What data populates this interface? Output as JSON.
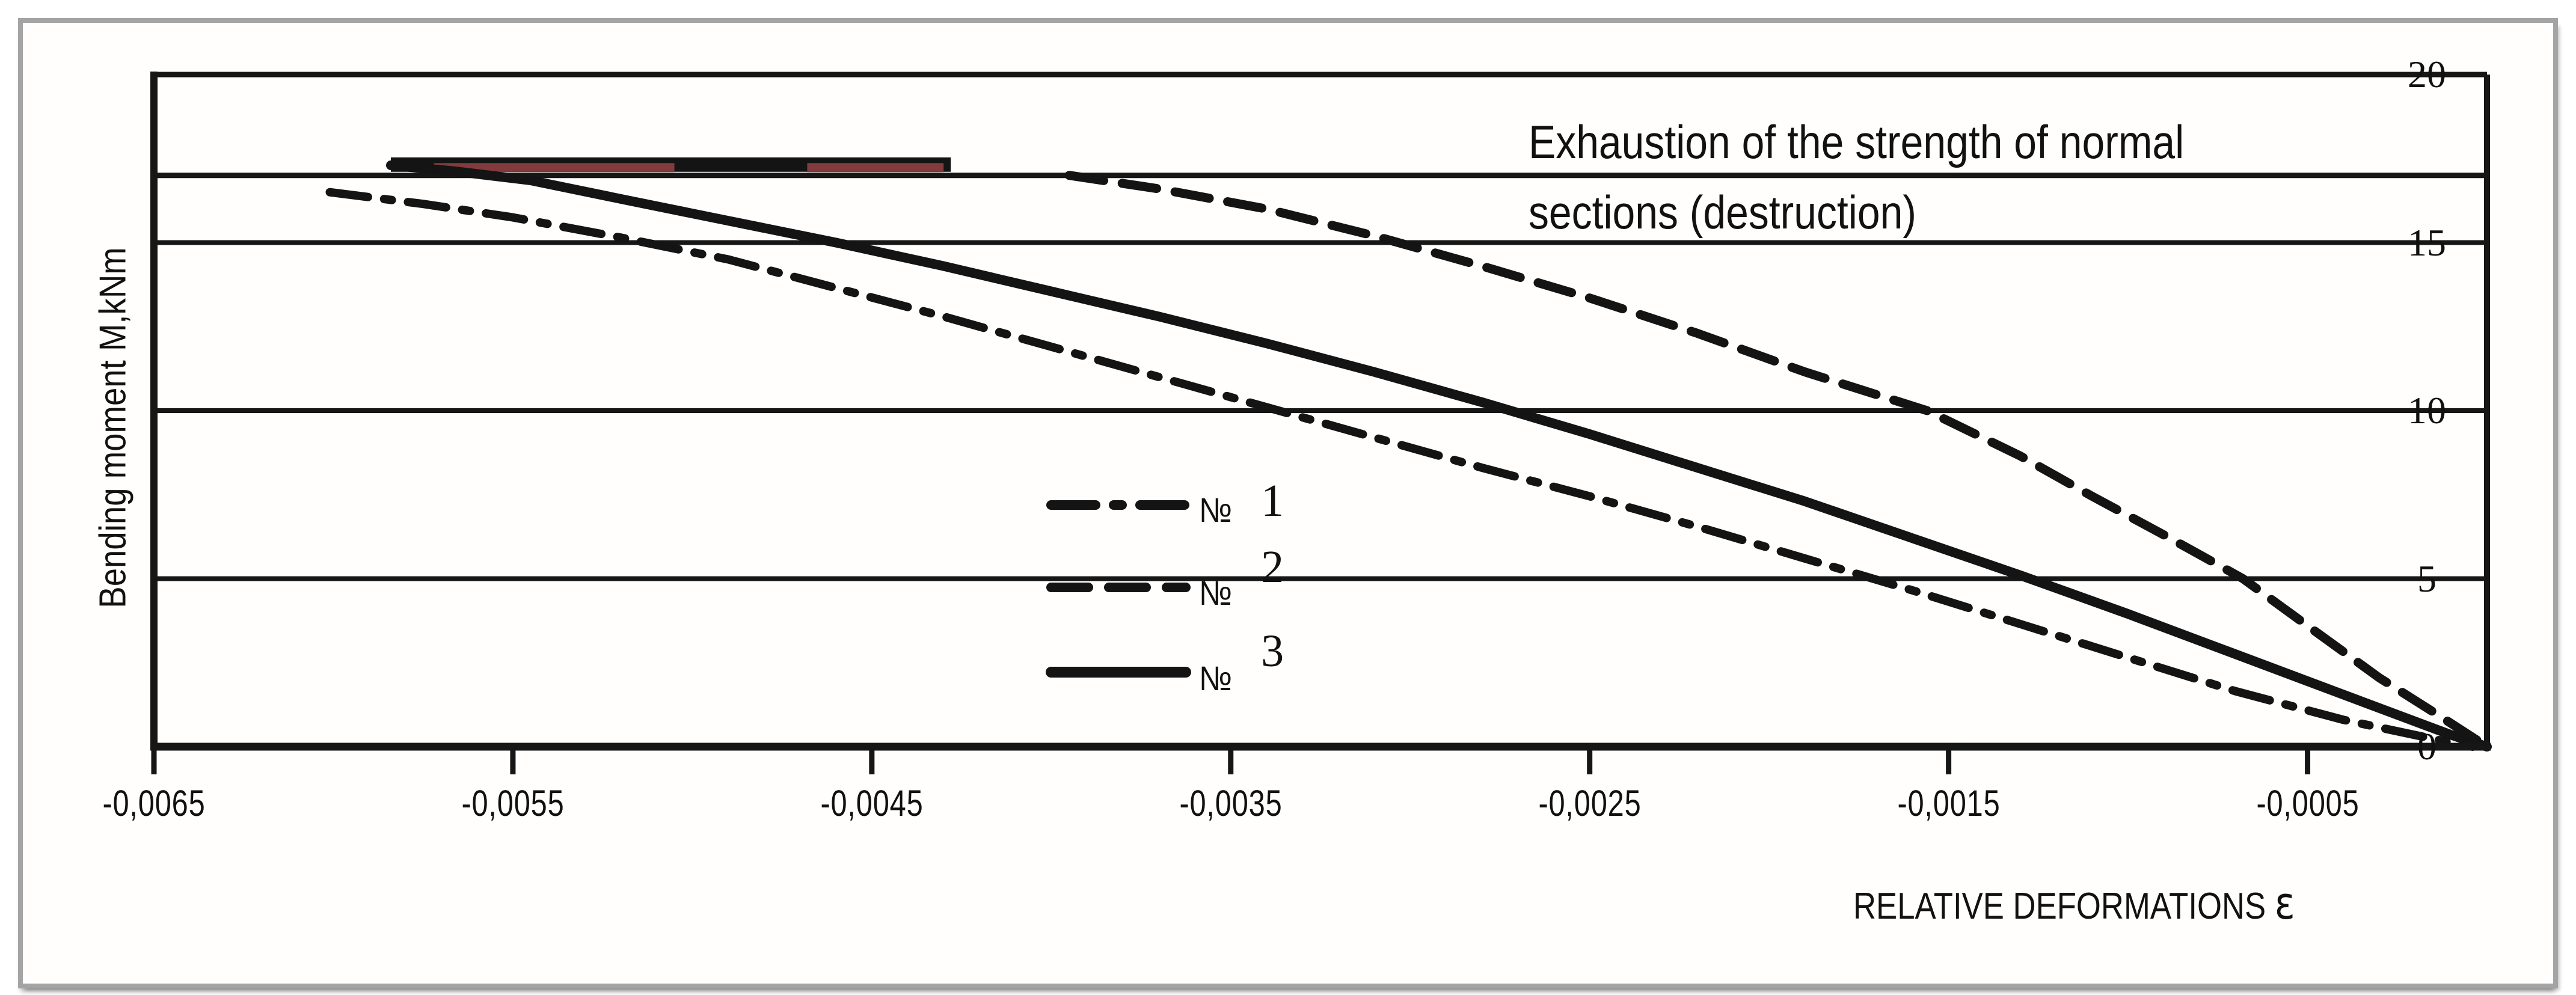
{
  "title": {
    "line1": "Exhaustion of the strength of normal",
    "line2": "sections (destruction)"
  },
  "axes": {
    "y_title": "Bending moment M,kNm",
    "x_title": "RELATIVE DEFORMATIONS",
    "x_title_symbol": "ε",
    "y_ticks": [
      20,
      15,
      10,
      5,
      0
    ],
    "x_tick_labels": [
      "-0,0065",
      "-0,0055",
      "-0,0045",
      "-0,0035",
      "-0,0025",
      "-0,0015",
      "-0,0005"
    ],
    "x_tick_values": [
      -0.0065,
      -0.0055,
      -0.0045,
      -0.0035,
      -0.0025,
      -0.0015,
      -0.0005
    ]
  },
  "legend": [
    {
      "prefix": "№",
      "num": "1",
      "style": "dashdot"
    },
    {
      "prefix": "№",
      "num": "2",
      "style": "dashed"
    },
    {
      "prefix": "№",
      "num": "3",
      "style": "solid"
    }
  ],
  "colors": {
    "line": "#141414",
    "grid": "#161616",
    "destruction_red": "#833a3c",
    "frame": "#a4a4a4"
  },
  "chart_data": {
    "type": "line",
    "title": "Exhaustion of the strength of normal sections (destruction)",
    "xlabel": "RELATIVE DEFORMATIONS ε",
    "ylabel": "Bending moment M,kNm",
    "xlim": [
      -0.0065,
      0
    ],
    "ylim": [
      0,
      20
    ],
    "grid": "horizontal",
    "y_gridlines": [
      0,
      5,
      10,
      15,
      20
    ],
    "destruction_level": 17,
    "legend_position": "center-left",
    "plateau": {
      "m": 17.32,
      "from": -0.00584,
      "to": -0.00428,
      "red_segments": [
        [
          -0.00572,
          -0.00505
        ],
        [
          -0.00468,
          -0.0043
        ]
      ]
    },
    "series": [
      {
        "name": "№ 1",
        "style": "dashdot",
        "points": [
          [
            -0.00601,
            16.5
          ],
          [
            -0.00575,
            16.15
          ],
          [
            -0.0055,
            15.75
          ],
          [
            -0.0052,
            15.15
          ],
          [
            -0.0049,
            14.5
          ],
          [
            -0.0046,
            13.65
          ],
          [
            -0.0043,
            12.8
          ],
          [
            -0.004,
            11.9
          ],
          [
            -0.0037,
            11.0
          ],
          [
            -0.0034,
            10.1
          ],
          [
            -0.0031,
            9.2
          ],
          [
            -0.0028,
            8.3
          ],
          [
            -0.0025,
            7.45
          ],
          [
            -0.0022,
            6.55
          ],
          [
            -0.0019,
            5.6
          ],
          [
            -0.0016,
            4.65
          ],
          [
            -0.0013,
            3.65
          ],
          [
            -0.001,
            2.65
          ],
          [
            -0.0007,
            1.65
          ],
          [
            -0.0004,
            0.8
          ],
          [
            -0.0001,
            0.12
          ],
          [
            -4e-05,
            0
          ]
        ]
      },
      {
        "name": "№ 2",
        "style": "dashed",
        "points": [
          [
            -0.00395,
            17.0
          ],
          [
            -0.0037,
            16.6
          ],
          [
            -0.0034,
            16.0
          ],
          [
            -0.0031,
            15.2
          ],
          [
            -0.0028,
            14.3
          ],
          [
            -0.0025,
            13.35
          ],
          [
            -0.0022,
            12.3
          ],
          [
            -0.0019,
            11.15
          ],
          [
            -0.00156,
            10.0
          ],
          [
            -0.0013,
            8.65
          ],
          [
            -0.0011,
            7.45
          ],
          [
            -0.0009,
            6.3
          ],
          [
            -0.00068,
            5.0
          ],
          [
            -0.0005,
            3.6
          ],
          [
            -0.0003,
            2.05
          ],
          [
            -0.00013,
            0.9
          ],
          [
            0,
            0
          ]
        ]
      },
      {
        "name": "№ 3",
        "style": "solid",
        "points": [
          [
            -0.00584,
            17.3
          ],
          [
            -0.00566,
            17.12
          ],
          [
            -0.00545,
            16.85
          ],
          [
            -0.0052,
            16.3
          ],
          [
            -0.0049,
            15.65
          ],
          [
            -0.0046,
            15.0
          ],
          [
            -0.0043,
            14.3
          ],
          [
            -0.004,
            13.55
          ],
          [
            -0.0037,
            12.8
          ],
          [
            -0.0034,
            12.0
          ],
          [
            -0.0031,
            11.15
          ],
          [
            -0.0028,
            10.25
          ],
          [
            -0.0025,
            9.3
          ],
          [
            -0.0022,
            8.3
          ],
          [
            -0.0019,
            7.3
          ],
          [
            -0.0016,
            6.2
          ],
          [
            -0.0013,
            5.1
          ],
          [
            -0.001,
            3.95
          ],
          [
            -0.0007,
            2.75
          ],
          [
            -0.0004,
            1.55
          ],
          [
            -0.0001,
            0.35
          ],
          [
            0,
            0
          ]
        ]
      }
    ]
  }
}
